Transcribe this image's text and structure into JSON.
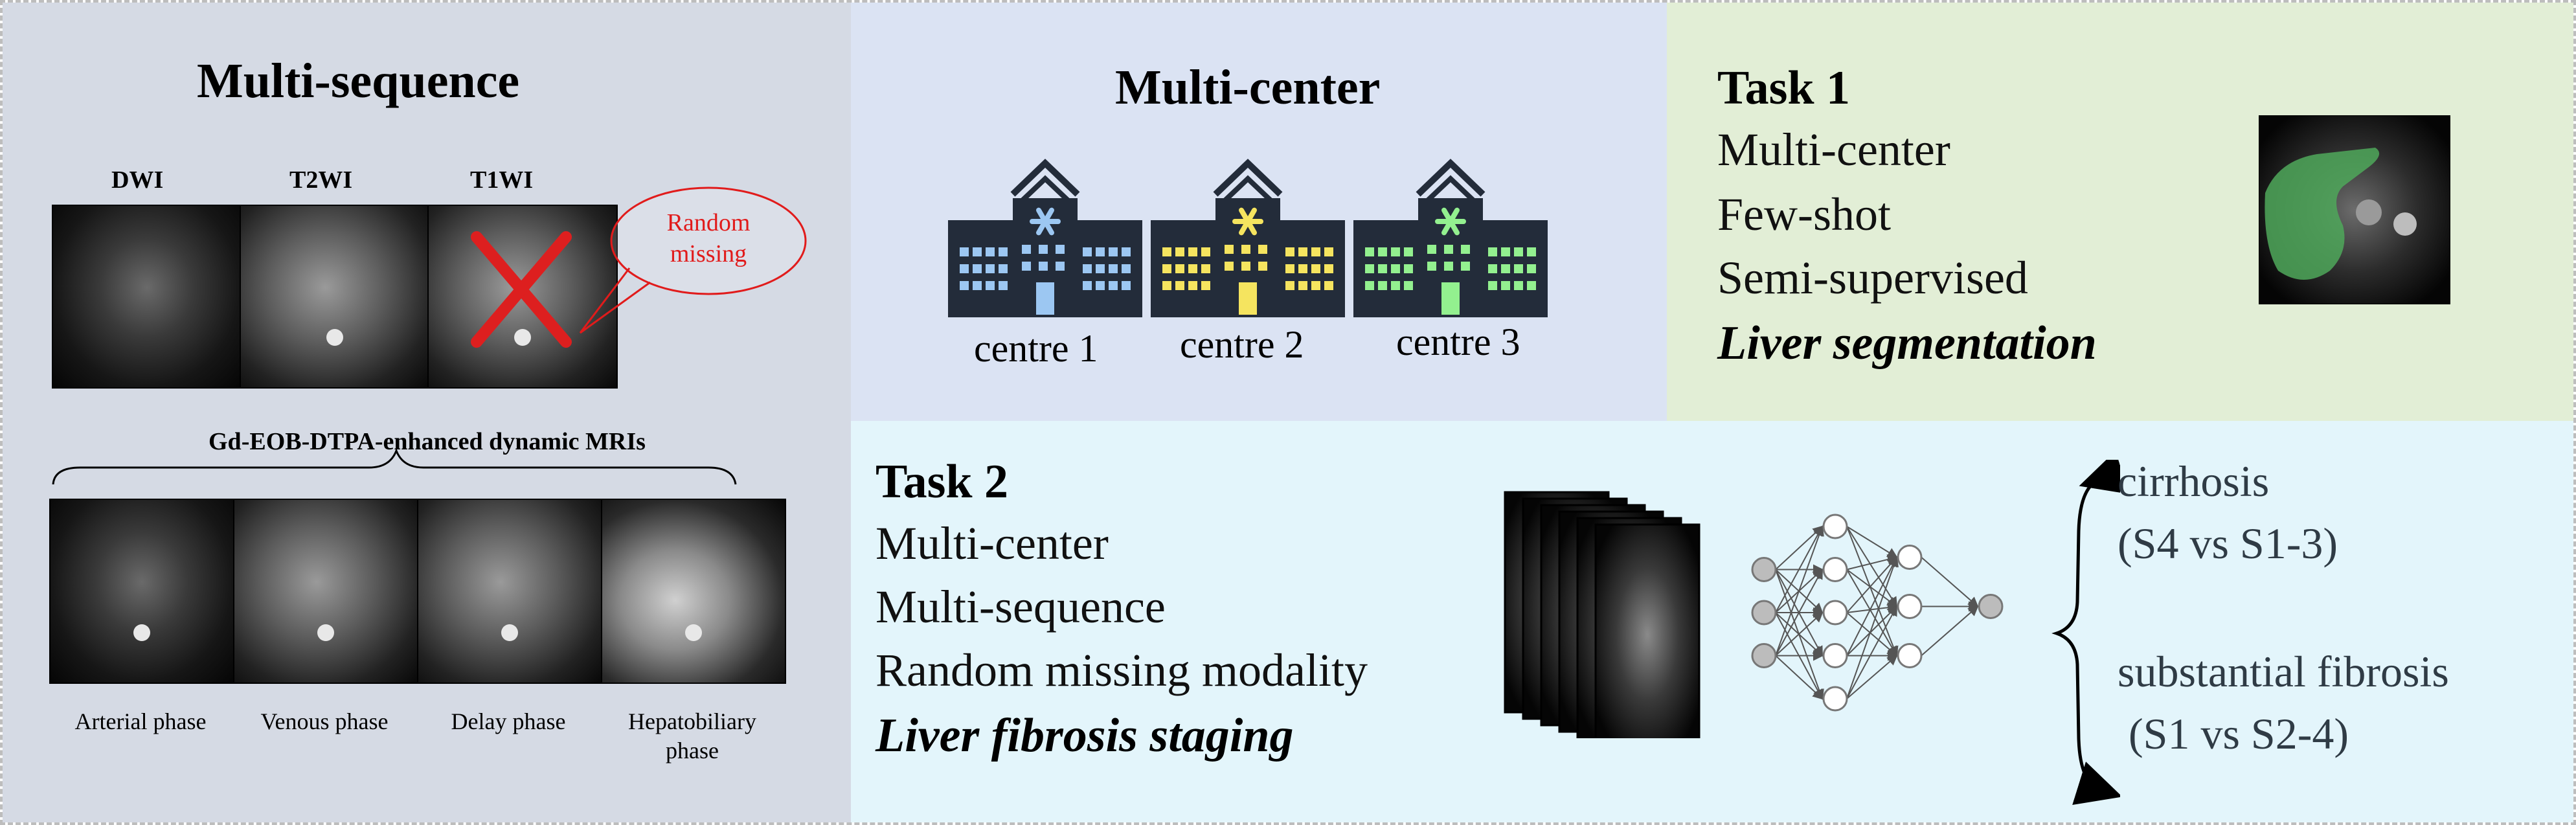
{
  "multi_sequence": {
    "title": "Multi-sequence",
    "sequences": [
      "DWI",
      "T2WI",
      "T1WI"
    ],
    "callout": [
      "Random",
      "missing"
    ],
    "dynamic_title": "Gd-EOB-DTPA-enhanced dynamic MRIs",
    "phases": [
      "Arterial phase",
      "Venous phase",
      "Delay phase",
      "Hepatobiliary phase"
    ],
    "colors": {
      "cross": "#dd1f1f",
      "callout": "#e11b1b"
    }
  },
  "multi_center": {
    "title": "Multi-center",
    "centres": [
      {
        "label": "centre 1",
        "color": "#9cc7f2"
      },
      {
        "label": "centre 2",
        "color": "#f5e45f"
      },
      {
        "label": "centre 3",
        "color": "#93f08f"
      }
    ],
    "building_color": "#232c3a"
  },
  "task1": {
    "heading": "Task 1",
    "lines": [
      "Multi-center",
      "Few-shot",
      "Semi-supervised"
    ],
    "emphasis": "Liver segmentation",
    "mask_color": "#4fa85a"
  },
  "task2": {
    "heading": "Task 2",
    "lines": [
      "Multi-center",
      "Multi-sequence",
      "Random missing modality"
    ],
    "emphasis": "Liver fibrosis staging",
    "outputs": [
      {
        "label": "cirrhosis",
        "sub": "(S4 vs S1-3)"
      },
      {
        "label": "substantial fibrosis",
        "sub": " (S1 vs S2-4)"
      }
    ]
  }
}
